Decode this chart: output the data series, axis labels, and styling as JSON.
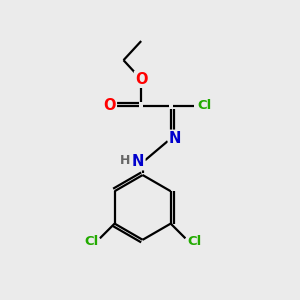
{
  "bg_color": "#ebebeb",
  "bond_color": "#000000",
  "bond_width": 1.6,
  "atom_colors": {
    "O": "#ff0000",
    "N": "#0000cc",
    "Cl": "#22aa00",
    "H": "#666666"
  },
  "font_size": 9.5
}
